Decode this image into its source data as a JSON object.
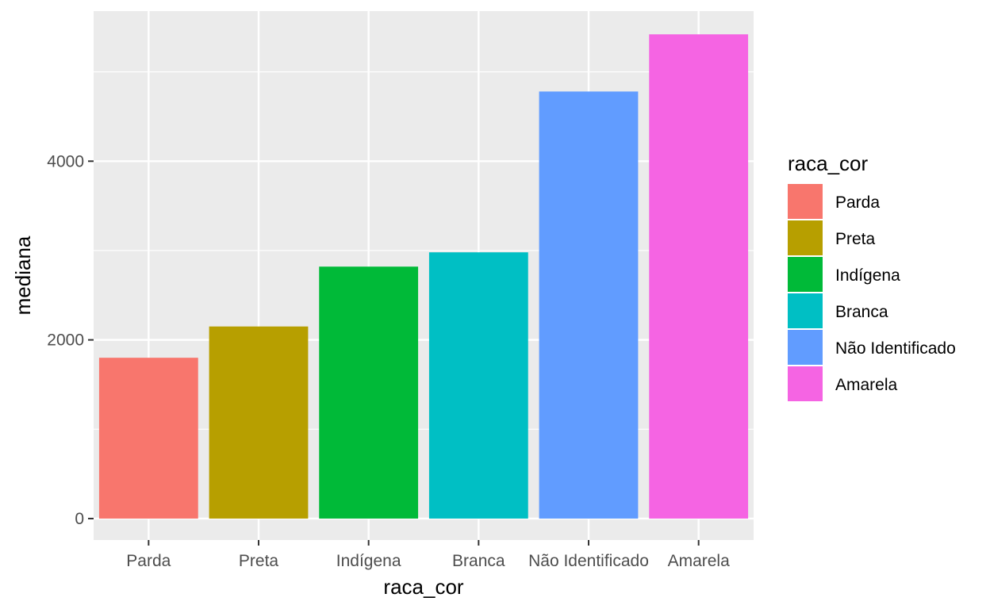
{
  "chart_data": {
    "type": "bar",
    "categories": [
      "Parda",
      "Preta",
      "Indígena",
      "Branca",
      "Não Identificado",
      "Amarela"
    ],
    "values": [
      1800,
      2150,
      2820,
      2980,
      4780,
      5420
    ],
    "colors": [
      "#F8766D",
      "#B79F00",
      "#00BA38",
      "#00BFC4",
      "#619CFF",
      "#F564E3"
    ],
    "xlabel": "raca_cor",
    "ylabel": "mediana",
    "ylim": [
      -240,
      5680
    ],
    "yticks": [
      0,
      2000,
      4000
    ],
    "ytick_labels": [
      "0",
      "2000",
      "4000"
    ],
    "grid": true,
    "panel_background": "#EBEBEB",
    "legend": {
      "title": "raca_cor",
      "position": "right",
      "entries": [
        "Parda",
        "Preta",
        "Indígena",
        "Branca",
        "Não Identificado",
        "Amarela"
      ]
    }
  }
}
